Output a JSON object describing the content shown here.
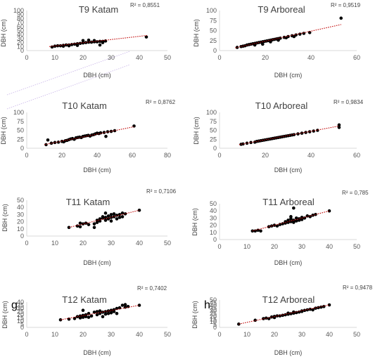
{
  "styles": {
    "dot": "#000000",
    "trend": "#c00000",
    "axis": "#d9d9d9",
    "text": "#404040"
  },
  "chart_data": [
    {
      "type": "scatter",
      "title": "T9 Katam",
      "r2": "R² = 0,8551",
      "xlabel": "DBH (cm)",
      "ylabel": "DBH (cm)",
      "panel_letter": "",
      "xlim": [
        0,
        50
      ],
      "xticks": [
        "0",
        "10",
        "20",
        "30",
        "40",
        "50"
      ],
      "ylim": [
        0,
        100
      ],
      "yticks": [
        "0",
        "10",
        "20",
        "30",
        "40",
        "50",
        "60",
        "70",
        "80",
        "90",
        "100"
      ],
      "trend": [
        [
          8,
          10
        ],
        [
          43,
          38
        ]
      ],
      "points": [
        [
          9,
          9
        ],
        [
          10,
          11
        ],
        [
          11,
          12
        ],
        [
          12,
          12
        ],
        [
          13,
          13
        ],
        [
          14,
          14
        ],
        [
          15,
          14
        ],
        [
          16,
          15
        ],
        [
          17,
          16
        ],
        [
          18,
          17
        ],
        [
          19,
          18
        ],
        [
          20,
          19
        ],
        [
          21,
          20
        ],
        [
          22,
          21
        ],
        [
          23,
          21
        ],
        [
          24,
          22
        ],
        [
          25,
          22
        ],
        [
          26,
          23
        ],
        [
          27,
          23
        ],
        [
          28,
          24
        ],
        [
          20,
          25
        ],
        [
          22,
          26
        ],
        [
          24,
          25
        ],
        [
          27,
          20
        ],
        [
          26,
          14
        ],
        [
          18,
          13
        ],
        [
          15,
          12
        ],
        [
          13,
          11
        ],
        [
          42.5,
          34
        ]
      ]
    },
    {
      "type": "scatter",
      "title": "T9 Arboreal",
      "r2": "R² = 0,9519",
      "xlabel": "DBH (cm)",
      "ylabel": "DBH (cm)",
      "panel_letter": "",
      "xlim": [
        0,
        70
      ],
      "xticks": [
        "0",
        "20",
        "40",
        "60"
      ],
      "ylim": [
        0,
        100
      ],
      "yticks": [
        "0",
        "25",
        "50",
        "75",
        "100"
      ],
      "trend": [
        [
          8,
          7
        ],
        [
          62,
          65
        ]
      ],
      "points": [
        [
          9,
          8
        ],
        [
          11,
          10
        ],
        [
          12,
          11
        ],
        [
          13,
          12
        ],
        [
          14,
          14
        ],
        [
          15,
          15
        ],
        [
          16,
          16
        ],
        [
          17,
          17
        ],
        [
          18,
          18
        ],
        [
          19,
          19
        ],
        [
          20,
          20
        ],
        [
          21,
          21
        ],
        [
          22,
          22
        ],
        [
          23,
          23
        ],
        [
          24,
          24
        ],
        [
          25,
          25
        ],
        [
          26,
          26
        ],
        [
          27,
          27
        ],
        [
          28,
          28
        ],
        [
          29,
          29
        ],
        [
          30,
          30
        ],
        [
          31,
          31
        ],
        [
          33,
          33
        ],
        [
          35,
          35
        ],
        [
          37,
          37
        ],
        [
          39,
          39
        ],
        [
          41,
          41
        ],
        [
          43,
          43
        ],
        [
          46,
          45
        ],
        [
          18,
          14
        ],
        [
          22,
          16
        ],
        [
          26,
          22
        ],
        [
          30,
          26
        ],
        [
          34,
          32
        ],
        [
          38,
          35
        ],
        [
          62,
          81
        ]
      ]
    },
    {
      "type": "scatter",
      "title": "T10 Katam",
      "r2": "R² = 0,8762",
      "xlabel": "DBH (cm)",
      "ylabel": "DBH (cm)",
      "panel_letter": "",
      "xlim": [
        0,
        80
      ],
      "xticks": [
        "0",
        "20",
        "40",
        "60",
        "80"
      ],
      "ylim": [
        0,
        100
      ],
      "yticks": [
        "0",
        "25",
        "50",
        "75",
        "100"
      ],
      "trend": [
        [
          10,
          10
        ],
        [
          61,
          60
        ]
      ],
      "points": [
        [
          11,
          10
        ],
        [
          12,
          23
        ],
        [
          14,
          14
        ],
        [
          16,
          16
        ],
        [
          18,
          17
        ],
        [
          20,
          19
        ],
        [
          21,
          18
        ],
        [
          22,
          21
        ],
        [
          23,
          22
        ],
        [
          24,
          24
        ],
        [
          25,
          26
        ],
        [
          26,
          27
        ],
        [
          27,
          25
        ],
        [
          28,
          29
        ],
        [
          29,
          30
        ],
        [
          30,
          31
        ],
        [
          31,
          30
        ],
        [
          32,
          33
        ],
        [
          33,
          34
        ],
        [
          34,
          35
        ],
        [
          35,
          36
        ],
        [
          36,
          34
        ],
        [
          37,
          37
        ],
        [
          38,
          38
        ],
        [
          39,
          40
        ],
        [
          40,
          42
        ],
        [
          41,
          41
        ],
        [
          42,
          43
        ],
        [
          44,
          44
        ],
        [
          45,
          33
        ],
        [
          46,
          46
        ],
        [
          48,
          47
        ],
        [
          50,
          49
        ],
        [
          61,
          62
        ]
      ]
    },
    {
      "type": "scatter",
      "title": "T10 Arboreal",
      "r2": "R² = 0,9834",
      "xlabel": "DBH (cm)",
      "ylabel": "DBH (cm)",
      "panel_letter": "",
      "xlim": [
        0,
        70
      ],
      "xticks": [
        "0",
        "20",
        "40",
        "60"
      ],
      "ylim": [
        0,
        100
      ],
      "yticks": [
        "0",
        "25",
        "50",
        "75",
        "100"
      ],
      "trend": [
        [
          10,
          10
        ],
        [
          61,
          62
        ]
      ],
      "points": [
        [
          11,
          11
        ],
        [
          12,
          12
        ],
        [
          14,
          14
        ],
        [
          16,
          16
        ],
        [
          18,
          17
        ],
        [
          19,
          19
        ],
        [
          20,
          20
        ],
        [
          21,
          21
        ],
        [
          22,
          22
        ],
        [
          23,
          23
        ],
        [
          24,
          24
        ],
        [
          25,
          25
        ],
        [
          26,
          26
        ],
        [
          27,
          27
        ],
        [
          28,
          28
        ],
        [
          29,
          29
        ],
        [
          30,
          30
        ],
        [
          31,
          31
        ],
        [
          32,
          32
        ],
        [
          33,
          33
        ],
        [
          34,
          34
        ],
        [
          35,
          35
        ],
        [
          36,
          36
        ],
        [
          37,
          37
        ],
        [
          38,
          38
        ],
        [
          40,
          40
        ],
        [
          42,
          42
        ],
        [
          44,
          44
        ],
        [
          46,
          46
        ],
        [
          48,
          48
        ],
        [
          50,
          50
        ],
        [
          61,
          58
        ],
        [
          61,
          65
        ]
      ]
    },
    {
      "type": "scatter",
      "title": "T11 Katam",
      "r2": "R² = 0,7106",
      "xlabel": "DBH (cm)",
      "ylabel": "DBH (cm)",
      "panel_letter": "",
      "xlim": [
        0,
        50
      ],
      "xticks": [
        "0",
        "10",
        "20",
        "30",
        "40",
        "50"
      ],
      "ylim": [
        0,
        50
      ],
      "yticks": [
        "0",
        "10",
        "20",
        "30",
        "40",
        "50"
      ],
      "trend": [
        [
          15,
          12
        ],
        [
          40,
          36
        ]
      ],
      "points": [
        [
          15,
          12
        ],
        [
          18,
          14
        ],
        [
          19,
          13
        ],
        [
          20,
          17
        ],
        [
          21,
          18
        ],
        [
          22,
          16
        ],
        [
          24,
          17
        ],
        [
          24,
          12
        ],
        [
          25,
          19
        ],
        [
          25,
          22
        ],
        [
          26,
          21
        ],
        [
          26,
          24
        ],
        [
          27,
          25
        ],
        [
          27,
          27
        ],
        [
          28,
          22
        ],
        [
          28,
          26
        ],
        [
          28,
          32
        ],
        [
          29,
          24
        ],
        [
          29,
          28
        ],
        [
          30,
          26
        ],
        [
          30,
          30
        ],
        [
          30,
          21
        ],
        [
          31,
          27
        ],
        [
          31,
          31
        ],
        [
          32,
          29
        ],
        [
          32,
          24
        ],
        [
          33,
          30
        ],
        [
          33,
          26
        ],
        [
          34,
          27
        ],
        [
          34,
          32
        ],
        [
          19,
          18
        ],
        [
          35,
          31
        ],
        [
          40,
          36
        ]
      ]
    },
    {
      "type": "scatter",
      "title": "T11 Arboreal",
      "r2": "R² = 0,785",
      "xlabel": "DBH (cm)",
      "ylabel": "DBH (cm)",
      "panel_letter": "",
      "xlim": [
        0,
        50
      ],
      "xticks": [
        "0",
        "10",
        "20",
        "30",
        "40",
        "50"
      ],
      "ylim": [
        0,
        50
      ],
      "yticks": [
        "0",
        "10",
        "20",
        "30",
        "40",
        "50"
      ],
      "trend": [
        [
          12,
          12
        ],
        [
          40,
          40
        ]
      ],
      "points": [
        [
          12,
          12
        ],
        [
          13,
          12
        ],
        [
          14,
          13
        ],
        [
          15,
          12
        ],
        [
          18,
          18
        ],
        [
          19,
          19
        ],
        [
          20,
          20
        ],
        [
          21,
          19
        ],
        [
          22,
          21
        ],
        [
          23,
          22
        ],
        [
          24,
          23
        ],
        [
          24,
          25
        ],
        [
          25,
          24
        ],
        [
          25,
          27
        ],
        [
          26,
          25
        ],
        [
          26,
          29
        ],
        [
          26,
          32
        ],
        [
          27,
          24
        ],
        [
          27,
          27
        ],
        [
          27,
          44
        ],
        [
          28,
          26
        ],
        [
          28,
          30
        ],
        [
          29,
          27
        ],
        [
          29,
          29
        ],
        [
          30,
          28
        ],
        [
          30,
          31
        ],
        [
          31,
          30
        ],
        [
          32,
          33
        ],
        [
          33,
          32
        ],
        [
          34,
          34
        ],
        [
          35,
          35
        ],
        [
          40,
          40
        ]
      ]
    },
    {
      "type": "scatter",
      "title": "T12 Katam",
      "r2": "R² = 0,7402",
      "xlabel": "DBH (cm)",
      "ylabel": "DBH (cm)",
      "panel_letter": "g",
      "xlim": [
        0,
        50
      ],
      "xticks": [
        "0",
        "10",
        "20",
        "30",
        "40",
        "50"
      ],
      "ylim": [
        0,
        40
      ],
      "yticks": [
        "0",
        "5",
        "10",
        "15",
        "20",
        "25",
        "30",
        "35",
        "40"
      ],
      "trend": [
        [
          12,
          12
        ],
        [
          40,
          35
        ]
      ],
      "points": [
        [
          12,
          12
        ],
        [
          15,
          13
        ],
        [
          17,
          14
        ],
        [
          18,
          17
        ],
        [
          19,
          15
        ],
        [
          19,
          18
        ],
        [
          20,
          16
        ],
        [
          20,
          19
        ],
        [
          20,
          27
        ],
        [
          21,
          17
        ],
        [
          21,
          20
        ],
        [
          22,
          16
        ],
        [
          22,
          22
        ],
        [
          23,
          18
        ],
        [
          24,
          24
        ],
        [
          25,
          20
        ],
        [
          25,
          25
        ],
        [
          26,
          22
        ],
        [
          26,
          26
        ],
        [
          27,
          24
        ],
        [
          27,
          17
        ],
        [
          28,
          25
        ],
        [
          28,
          21
        ],
        [
          29,
          26
        ],
        [
          29,
          22
        ],
        [
          30,
          27
        ],
        [
          30,
          23
        ],
        [
          31,
          28
        ],
        [
          31,
          25
        ],
        [
          32,
          30
        ],
        [
          32,
          22
        ],
        [
          33,
          31
        ],
        [
          34,
          35
        ],
        [
          35,
          32
        ],
        [
          35,
          36
        ],
        [
          36,
          33
        ],
        [
          40,
          35
        ]
      ]
    },
    {
      "type": "scatter",
      "title": "T12 Arboreal",
      "r2": "R² = 0,9478",
      "xlabel": "DBH (cm)",
      "ylabel": "DBH (cm)",
      "panel_letter": "h",
      "xlim": [
        0,
        50
      ],
      "xticks": [
        "0",
        "10",
        "20",
        "30",
        "40",
        "50"
      ],
      "ylim": [
        0,
        50
      ],
      "yticks": [
        "0",
        "5",
        "10",
        "15",
        "20",
        "25",
        "30",
        "35",
        "40",
        "45",
        "50"
      ],
      "trend": [
        [
          7,
          6
        ],
        [
          40,
          41
        ]
      ],
      "points": [
        [
          7,
          6
        ],
        [
          13,
          13
        ],
        [
          16,
          16
        ],
        [
          17,
          17
        ],
        [
          18,
          16
        ],
        [
          19,
          19
        ],
        [
          20,
          20
        ],
        [
          20,
          18
        ],
        [
          21,
          21
        ],
        [
          22,
          21
        ],
        [
          23,
          22
        ],
        [
          24,
          23
        ],
        [
          25,
          24
        ],
        [
          25,
          26
        ],
        [
          26,
          25
        ],
        [
          27,
          26
        ],
        [
          27,
          28
        ],
        [
          28,
          27
        ],
        [
          29,
          28
        ],
        [
          30,
          29
        ],
        [
          30,
          30
        ],
        [
          31,
          31
        ],
        [
          32,
          32
        ],
        [
          33,
          33
        ],
        [
          34,
          32
        ],
        [
          35,
          35
        ],
        [
          36,
          36
        ],
        [
          37,
          37
        ],
        [
          38,
          38
        ],
        [
          40,
          41
        ]
      ]
    }
  ]
}
